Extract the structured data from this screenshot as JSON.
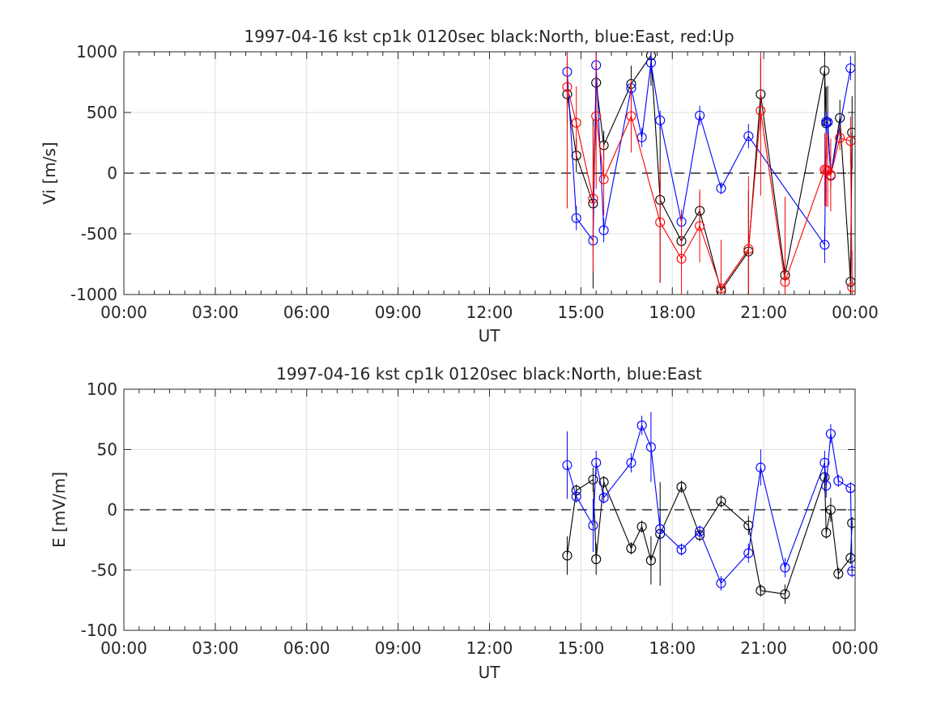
{
  "chart_data": [
    {
      "type": "scatter",
      "title": "1997-04-16 kst cp1k 0120sec black:North, blue:East, red:Up",
      "xlabel": "UT",
      "ylabel": "Vi [m/s]",
      "xlim_hours": [
        0,
        24
      ],
      "ylim": [
        -1000,
        1000
      ],
      "x_ticks": [
        "00:00",
        "03:00",
        "06:00",
        "09:00",
        "12:00",
        "15:00",
        "18:00",
        "21:00",
        "00:00"
      ],
      "y_ticks": [
        "1000",
        "500",
        "0",
        "-500",
        "-1000"
      ],
      "y_tick_values": [
        1000,
        500,
        0,
        -500,
        -1000
      ],
      "grid": true,
      "zero_line": "dashed",
      "series": [
        {
          "color": "#000000",
          "t": [
            14.55,
            14.85,
            15.4,
            15.5,
            15.75,
            16.65,
            17.3,
            17.6,
            18.3,
            18.9,
            19.6,
            20.5,
            20.9,
            21.7,
            23.0,
            23.05,
            23.1,
            23.2,
            23.5,
            23.85,
            23.9
          ],
          "y": [
            650,
            145,
            -250,
            745,
            230,
            735,
            970,
            -220,
            -560,
            -310,
            -970,
            -645,
            650,
            -840,
            845,
            410,
            420,
            -20,
            455,
            -895,
            335
          ],
          "err": [
            250,
            140,
            700,
            150,
            120,
            150,
            250,
            680,
            200,
            150,
            150,
            500,
            300,
            130,
            450,
            300,
            300,
            100,
            150,
            200,
            300
          ]
        },
        {
          "color": "#0000ff",
          "t": [
            14.55,
            14.85,
            15.4,
            15.5,
            15.75,
            16.65,
            17.0,
            17.3,
            17.6,
            18.3,
            18.9,
            19.6,
            20.5,
            23.0,
            23.05,
            23.1,
            23.2,
            23.85
          ],
          "y": [
            835,
            -370,
            -555,
            890,
            -470,
            700,
            295,
            910,
            435,
            -400,
            475,
            -125,
            305,
            -590,
            425,
            420,
            -15,
            865
          ],
          "err": [
            100,
            100,
            100,
            150,
            100,
            80,
            80,
            100,
            80,
            100,
            80,
            50,
            100,
            150,
            80,
            80,
            80,
            100
          ]
        },
        {
          "color": "#ff0000",
          "t": [
            14.55,
            14.85,
            15.4,
            15.5,
            15.75,
            16.65,
            17.6,
            18.3,
            18.9,
            19.6,
            20.5,
            20.9,
            21.7,
            23.0,
            23.05,
            23.1,
            23.2,
            23.5,
            23.85,
            23.9
          ],
          "y": [
            710,
            415,
            -210,
            470,
            -50,
            470,
            -405,
            -705,
            -435,
            -950,
            -625,
            515,
            -895,
            30,
            25,
            20,
            -15,
            290,
            265,
            -940
          ],
          "err": [
            1000,
            300,
            600,
            600,
            300,
            300,
            500,
            400,
            300,
            400,
            600,
            700,
            700,
            300,
            300,
            300,
            300,
            100,
            200,
            300
          ]
        }
      ]
    },
    {
      "type": "scatter",
      "title": "1997-04-16 kst cp1k 0120sec black:North, blue:East",
      "xlabel": "UT",
      "ylabel": "E [mV/m]",
      "xlim_hours": [
        0,
        24
      ],
      "ylim": [
        -100,
        100
      ],
      "x_ticks": [
        "00:00",
        "03:00",
        "06:00",
        "09:00",
        "12:00",
        "15:00",
        "18:00",
        "21:00",
        "00:00"
      ],
      "y_ticks": [
        "100",
        "50",
        "0",
        "-50",
        "-100"
      ],
      "y_tick_values": [
        100,
        50,
        0,
        -50,
        -100
      ],
      "grid": true,
      "zero_line": "dashed",
      "series": [
        {
          "color": "#000000",
          "t": [
            14.55,
            14.85,
            15.4,
            15.5,
            15.75,
            16.65,
            17.0,
            17.3,
            17.6,
            18.3,
            18.9,
            19.6,
            20.5,
            20.9,
            21.7,
            23.0,
            23.05,
            23.2,
            23.45,
            23.85,
            23.9
          ],
          "y": [
            -38,
            16,
            25,
            -41,
            23,
            -32,
            -14,
            -42,
            -20,
            19,
            -21,
            7,
            -13,
            -67,
            -70,
            27,
            -19,
            0,
            -53,
            -40,
            -11
          ],
          "err": [
            16,
            5,
            10,
            13,
            5,
            5,
            5,
            20,
            43,
            5,
            5,
            5,
            8,
            5,
            8,
            12,
            5,
            10,
            5,
            5,
            5
          ]
        },
        {
          "color": "#0000ff",
          "t": [
            14.55,
            14.85,
            15.4,
            15.5,
            15.75,
            16.65,
            17.0,
            17.3,
            17.6,
            18.3,
            18.9,
            19.6,
            20.5,
            20.9,
            21.7,
            23.0,
            23.05,
            23.2,
            23.45,
            23.85,
            23.9
          ],
          "y": [
            37,
            11,
            -13,
            39,
            10,
            39,
            70,
            52,
            -16,
            -33,
            -18,
            -61,
            -36,
            35,
            -48,
            39,
            20,
            63,
            24,
            18,
            -51
          ],
          "err": [
            28,
            5,
            22,
            10,
            5,
            8,
            8,
            29,
            10,
            5,
            5,
            6,
            8,
            15,
            8,
            10,
            10,
            8,
            5,
            5,
            5
          ]
        }
      ]
    }
  ]
}
